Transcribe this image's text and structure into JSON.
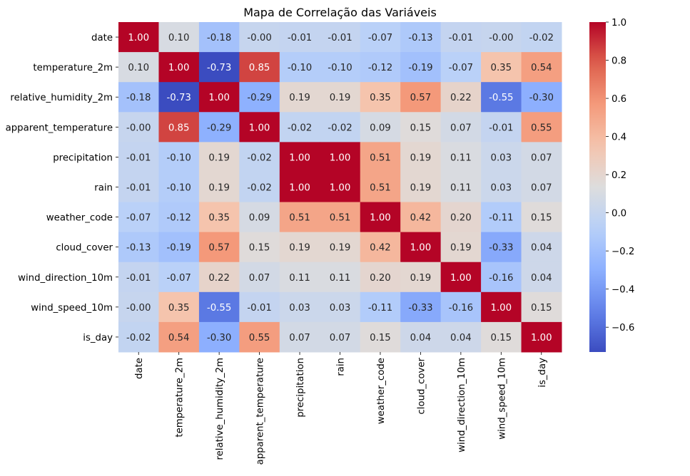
{
  "chart_data": {
    "type": "heatmap",
    "title": "Mapa de Correlação das Variáveis",
    "rows": [
      "date",
      "temperature_2m",
      "relative_humidity_2m",
      "apparent_temperature",
      "precipitation",
      "rain",
      "weather_code",
      "cloud_cover",
      "wind_direction_10m",
      "wind_speed_10m",
      "is_day"
    ],
    "columns": [
      "date",
      "temperature_2m",
      "relative_humidity_2m",
      "apparent_temperature",
      "precipitation",
      "rain",
      "weather_code",
      "cloud_cover",
      "wind_direction_10m",
      "wind_speed_10m",
      "is_day"
    ],
    "values": [
      [
        1.0,
        0.1,
        -0.18,
        -0.0,
        -0.01,
        -0.01,
        -0.07,
        -0.13,
        -0.01,
        -0.0,
        -0.02
      ],
      [
        0.1,
        1.0,
        -0.73,
        0.85,
        -0.1,
        -0.1,
        -0.12,
        -0.19,
        -0.07,
        0.35,
        0.54
      ],
      [
        -0.18,
        -0.73,
        1.0,
        -0.29,
        0.19,
        0.19,
        0.35,
        0.57,
        0.22,
        -0.55,
        -0.3
      ],
      [
        -0.0,
        0.85,
        -0.29,
        1.0,
        -0.02,
        -0.02,
        0.09,
        0.15,
        0.07,
        -0.01,
        0.55
      ],
      [
        -0.01,
        -0.1,
        0.19,
        -0.02,
        1.0,
        1.0,
        0.51,
        0.19,
        0.11,
        0.03,
        0.07
      ],
      [
        -0.01,
        -0.1,
        0.19,
        -0.02,
        1.0,
        1.0,
        0.51,
        0.19,
        0.11,
        0.03,
        0.07
      ],
      [
        -0.07,
        -0.12,
        0.35,
        0.09,
        0.51,
        0.51,
        1.0,
        0.42,
        0.2,
        -0.11,
        0.15
      ],
      [
        -0.13,
        -0.19,
        0.57,
        0.15,
        0.19,
        0.19,
        0.42,
        1.0,
        0.19,
        -0.33,
        0.04
      ],
      [
        -0.01,
        -0.07,
        0.22,
        0.07,
        0.11,
        0.11,
        0.2,
        0.19,
        1.0,
        -0.16,
        0.04
      ],
      [
        -0.0,
        0.35,
        -0.55,
        -0.01,
        0.03,
        0.03,
        -0.11,
        -0.33,
        -0.16,
        1.0,
        0.15
      ],
      [
        -0.02,
        0.54,
        -0.3,
        0.55,
        0.07,
        0.07,
        0.15,
        0.04,
        0.04,
        0.15,
        1.0
      ]
    ],
    "value_labels": [
      [
        "1.00",
        "0.10",
        "-0.18",
        "-0.00",
        "-0.01",
        "-0.01",
        "-0.07",
        "-0.13",
        "-0.01",
        "-0.00",
        "-0.02"
      ],
      [
        "0.10",
        "1.00",
        "-0.73",
        "0.85",
        "-0.10",
        "-0.10",
        "-0.12",
        "-0.19",
        "-0.07",
        "0.35",
        "0.54"
      ],
      [
        "-0.18",
        "-0.73",
        "1.00",
        "-0.29",
        "0.19",
        "0.19",
        "0.35",
        "0.57",
        "0.22",
        "-0.55",
        "-0.30"
      ],
      [
        "-0.00",
        "0.85",
        "-0.29",
        "1.00",
        "-0.02",
        "-0.02",
        "0.09",
        "0.15",
        "0.07",
        "-0.01",
        "0.55"
      ],
      [
        "-0.01",
        "-0.10",
        "0.19",
        "-0.02",
        "1.00",
        "1.00",
        "0.51",
        "0.19",
        "0.11",
        "0.03",
        "0.07"
      ],
      [
        "-0.01",
        "-0.10",
        "0.19",
        "-0.02",
        "1.00",
        "1.00",
        "0.51",
        "0.19",
        "0.11",
        "0.03",
        "0.07"
      ],
      [
        "-0.07",
        "-0.12",
        "0.35",
        "0.09",
        "0.51",
        "0.51",
        "1.00",
        "0.42",
        "0.20",
        "-0.11",
        "0.15"
      ],
      [
        "-0.13",
        "-0.19",
        "0.57",
        "0.15",
        "0.19",
        "0.19",
        "0.42",
        "1.00",
        "0.19",
        "-0.33",
        "0.04"
      ],
      [
        "-0.01",
        "-0.07",
        "0.22",
        "0.07",
        "0.11",
        "0.11",
        "0.20",
        "0.19",
        "1.00",
        "-0.16",
        "0.04"
      ],
      [
        "-0.00",
        "0.35",
        "-0.55",
        "-0.01",
        "0.03",
        "0.03",
        "-0.11",
        "-0.33",
        "-0.16",
        "1.00",
        "0.15"
      ],
      [
        "-0.02",
        "0.54",
        "-0.30",
        "0.55",
        "0.07",
        "0.07",
        "0.15",
        "0.04",
        "0.04",
        "0.15",
        "1.00"
      ]
    ],
    "colormap": "coolwarm",
    "color_range": [
      -0.73,
      1.0
    ],
    "colorbar": {
      "ticks": [
        1.0,
        0.8,
        0.6,
        0.4,
        0.2,
        0.0,
        -0.2,
        -0.4,
        -0.6
      ],
      "tick_labels": [
        "1.0",
        "0.8",
        "0.6",
        "0.4",
        "0.2",
        "0.0",
        "−0.2",
        "−0.4",
        "−0.6"
      ]
    },
    "grid": false,
    "legend": "colorbar-right"
  }
}
